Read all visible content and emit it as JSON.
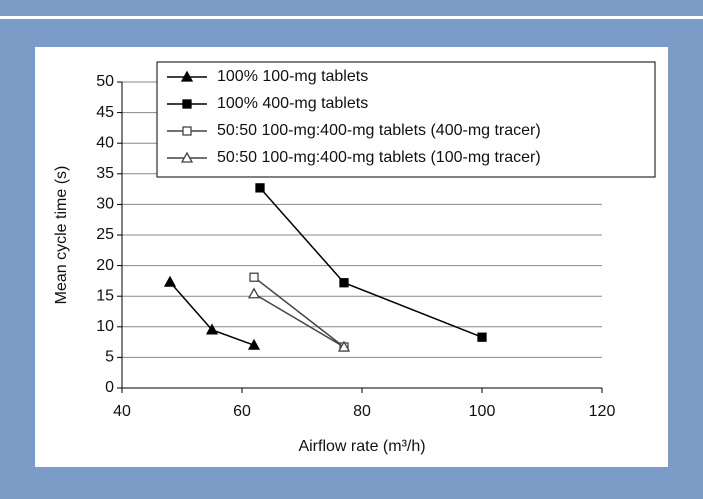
{
  "chart_data": {
    "type": "line",
    "xlabel": "Airflow rate (m³/h)",
    "ylabel": "Mean cycle time (s)",
    "xlim": [
      40,
      120
    ],
    "xticks": [
      40,
      60,
      80,
      100,
      120
    ],
    "ylim": [
      0,
      50
    ],
    "yticks": [
      0,
      5,
      10,
      15,
      20,
      25,
      30,
      35,
      40,
      45,
      50
    ],
    "grid": true,
    "legend": "top-right",
    "series": [
      {
        "name": "100% 100-mg tablets",
        "color": "#000000",
        "marker": "triangle",
        "filled": true,
        "x": [
          48,
          55,
          62
        ],
        "values": [
          17.3,
          9.5,
          7
        ]
      },
      {
        "name": "100% 400-mg tablets",
        "color": "#000000",
        "marker": "square",
        "filled": true,
        "x": [
          63,
          77,
          100
        ],
        "values": [
          32.7,
          17.2,
          8.3
        ]
      },
      {
        "name": "50:50 100-mg:400-mg tablets (400-mg tracer)",
        "color": "#444444",
        "marker": "square",
        "filled": false,
        "x": [
          62,
          77
        ],
        "values": [
          18.1,
          6.7
        ]
      },
      {
        "name": "50:50 100-mg:400-mg tablets (100-mg tracer)",
        "color": "#444444",
        "marker": "triangle",
        "filled": false,
        "x": [
          62,
          77
        ],
        "values": [
          15.4,
          6.7
        ]
      }
    ]
  }
}
